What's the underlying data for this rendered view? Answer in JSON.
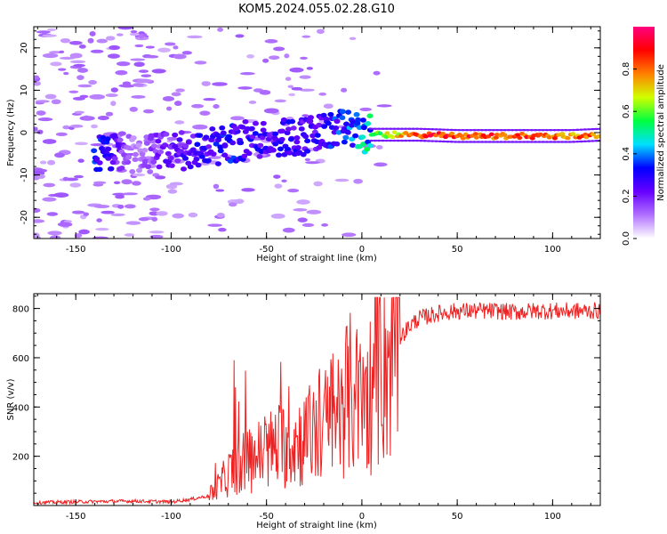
{
  "chart_data": [
    {
      "type": "heatmap",
      "title": "KOM5.2024.055.02.28.G10",
      "xlabel": "Height of straight line (km)",
      "ylabel": "Frequency (Hz)",
      "xlim": [
        -172,
        125
      ],
      "ylim": [
        -25,
        25
      ],
      "xticks": [
        "-150",
        "-100",
        "-50",
        "0",
        "50",
        "100"
      ],
      "xtick_values": [
        -150,
        -100,
        -50,
        0,
        50,
        100
      ],
      "yticks": [
        "20",
        "10",
        "0",
        "-10",
        "-20"
      ],
      "ytick_values": [
        20,
        10,
        0,
        -10,
        -20
      ],
      "grid": false,
      "colorscale": "rainbow",
      "colorbar": {
        "label": "Normalized spectral amplitude",
        "range": [
          0,
          1
        ],
        "ticks": [
          "0.0",
          "0.2",
          "0.4",
          "0.6",
          "0.8"
        ],
        "tick_values": [
          0.0,
          0.2,
          0.4,
          0.6,
          0.8
        ],
        "colors": [
          "#ffffff",
          "#b070ff",
          "#6600ff",
          "#0000ff",
          "#00e0ff",
          "#00ff40",
          "#d0ff00",
          "#ff8000",
          "#ff0000",
          "#ff0080"
        ]
      },
      "ridge": {
        "x": [
          -135,
          -120,
          -100,
          -85,
          -70,
          -55,
          -40,
          -25,
          -15,
          -5,
          0,
          10,
          30,
          50,
          70,
          90,
          110,
          125
        ],
        "y": [
          -5,
          -5,
          -4.5,
          -4,
          -2.5,
          -1.5,
          -1,
          -0.5,
          0.5,
          1,
          -0.5,
          -0.5,
          -0.5,
          -0.8,
          -0.8,
          -0.8,
          -0.8,
          -0.5
        ],
        "amplitude": [
          0.35,
          0.1,
          0.25,
          0.3,
          0.35,
          0.3,
          0.3,
          0.3,
          0.35,
          0.4,
          0.5,
          0.6,
          0.85,
          0.9,
          0.85,
          0.85,
          0.8,
          0.85
        ]
      }
    },
    {
      "type": "line",
      "title": "",
      "xlabel": "Height of straight line (km)",
      "ylabel": "SNR (v/v)",
      "xlim": [
        -172,
        125
      ],
      "ylim": [
        0,
        860
      ],
      "xticks": [
        "-150",
        "-100",
        "-50",
        "0",
        "50",
        "100"
      ],
      "xtick_values": [
        -150,
        -100,
        -50,
        0,
        50,
        100
      ],
      "yticks": [
        "800",
        "600",
        "400",
        "200"
      ],
      "ytick_values": [
        800,
        600,
        400,
        200
      ],
      "grid": false,
      "series": [
        {
          "color": "#ee2222",
          "x": [
            -172,
            -150,
            -120,
            -100,
            -90,
            -80,
            -75,
            -70,
            -65,
            -60,
            -55,
            -50,
            -45,
            -40,
            -35,
            -30,
            -25,
            -20,
            -15,
            -10,
            -5,
            0,
            5,
            10,
            15,
            20,
            25,
            30,
            40,
            50,
            60,
            70,
            80,
            90,
            100,
            110,
            125
          ],
          "y": [
            12,
            15,
            18,
            15,
            25,
            40,
            80,
            130,
            160,
            180,
            200,
            220,
            240,
            250,
            260,
            270,
            300,
            320,
            360,
            420,
            460,
            400,
            470,
            560,
            620,
            680,
            730,
            760,
            780,
            790,
            790,
            790,
            785,
            790,
            790,
            790,
            790
          ]
        }
      ]
    }
  ]
}
